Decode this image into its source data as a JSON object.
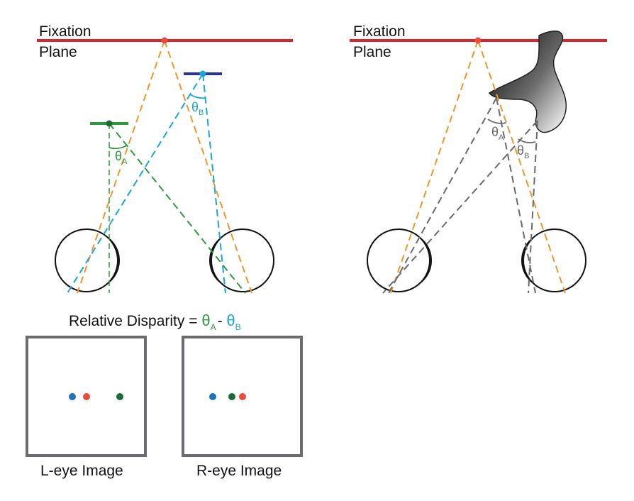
{
  "colors": {
    "fixation": "#d9262e",
    "orange": "#f0962a",
    "green": "#2e9a3c",
    "blue": "#1aa6d8",
    "navy": "#2b3590",
    "gray": "#6a6a6a",
    "dot_red": "#e74c3c",
    "dot_blue": "#1f73b8",
    "dot_green": "#1a6b35"
  },
  "left_panel": {
    "fixation_label_1": "Fixation",
    "fixation_label_2": "Plane",
    "theta_a_symbol": "θ",
    "theta_a_sub": "A",
    "theta_b_symbol": "θ",
    "theta_b_sub": "B"
  },
  "right_panel": {
    "fixation_label_1": "Fixation",
    "fixation_label_2": "Plane",
    "theta_a_symbol": "θ",
    "theta_a_sub": "A",
    "theta_b_symbol": "θ",
    "theta_b_sub": "B"
  },
  "formula": {
    "prefix": "Relative Disparity = ",
    "theta": "θ",
    "sub_a": "A",
    "minus": "- ",
    "sub_b": "B"
  },
  "images": {
    "left_caption": "L-eye Image",
    "right_caption": "R-eye Image"
  }
}
